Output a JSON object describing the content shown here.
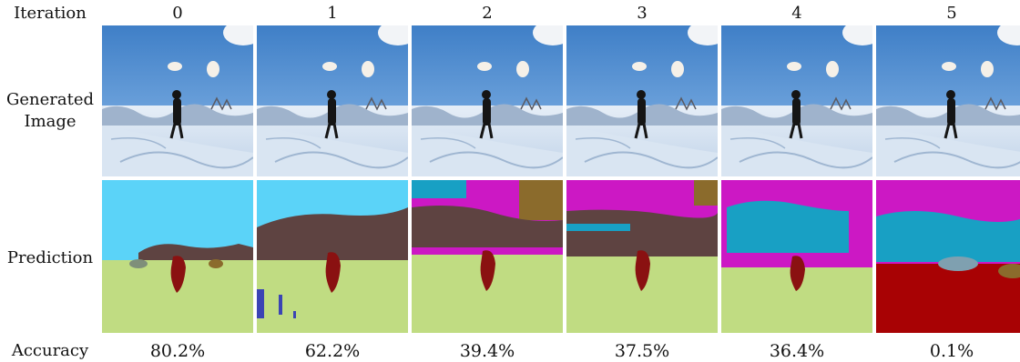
{
  "labels": {
    "iteration": "Iteration",
    "generated_image_line1": "Generated",
    "generated_image_line2": "Image",
    "prediction": "Prediction",
    "accuracy": "Accuracy"
  },
  "columns": [
    {
      "iteration": "0",
      "accuracy": "80.2%",
      "accuracy_value": 80.2
    },
    {
      "iteration": "1",
      "accuracy": "62.2%",
      "accuracy_value": 62.2
    },
    {
      "iteration": "2",
      "accuracy": "39.4%",
      "accuracy_value": 39.4
    },
    {
      "iteration": "3",
      "accuracy": "37.5%",
      "accuracy_value": 37.5
    },
    {
      "iteration": "4",
      "accuracy": "36.4%",
      "accuracy_value": 36.4
    },
    {
      "iteration": "5",
      "accuracy": "0.1%",
      "accuracy_value": 0.1
    }
  ],
  "colors": {
    "sky": "#5bd3f8",
    "mountain": "#5e4341",
    "snow_ground": "#c0dc82",
    "person": "#8a1111",
    "magenta": "#cc18c4",
    "teal": "#18a0c4",
    "dark_red": "#a80204",
    "ochre": "#8b6b2c",
    "blue": "#3b44b4"
  }
}
